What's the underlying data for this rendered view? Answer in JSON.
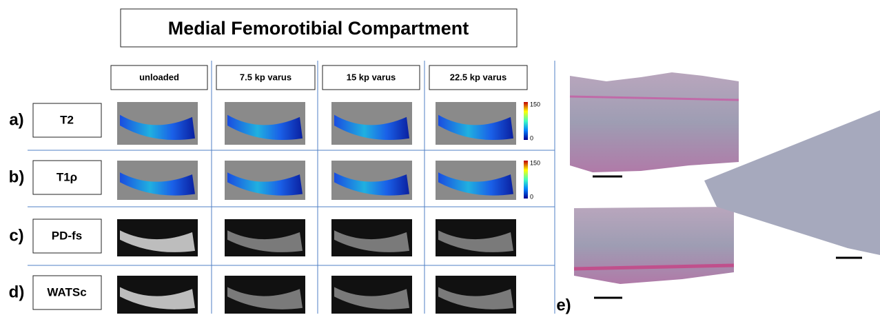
{
  "title": "Medial Femorotibial Compartment",
  "columns": [
    "unloaded",
    "7.5 kp varus",
    "15 kp varus",
    "22.5 kp varus"
  ],
  "rows": [
    {
      "letter": "a)",
      "label": "T2",
      "colorbar": {
        "max": 150,
        "min": 0
      }
    },
    {
      "letter": "b)",
      "label": "T1ρ",
      "colorbar": {
        "max": 150,
        "min": 0
      }
    },
    {
      "letter": "c)",
      "label": "PD-fs"
    },
    {
      "letter": "d)",
      "label": "WATSc"
    }
  ],
  "panel_e": {
    "letter": "e)"
  }
}
